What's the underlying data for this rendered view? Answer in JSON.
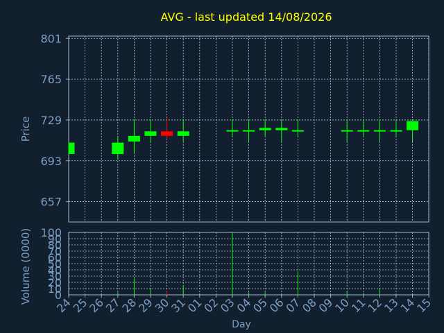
{
  "chart_data": {
    "type": "candlestick",
    "title": "AVG - last updated 14/08/2026",
    "xlabel": "Day",
    "x_ticks": [
      "24",
      "25",
      "26",
      "27",
      "28",
      "29",
      "30",
      "31",
      "01",
      "02",
      "03",
      "04",
      "05",
      "06",
      "07",
      "08",
      "09",
      "10",
      "11",
      "12",
      "13",
      "14",
      "15"
    ],
    "price_panel": {
      "ylabel": "Price",
      "yticks": [
        657,
        693,
        729,
        765,
        801
      ],
      "ylim": [
        639,
        803
      ],
      "grid": true,
      "candles": [
        {
          "day": "24",
          "open": 699,
          "close": 709,
          "high": 709,
          "low": 699,
          "direction": "up"
        },
        {
          "day": "27",
          "open": 699,
          "close": 709,
          "high": 715,
          "low": 694,
          "direction": "up"
        },
        {
          "day": "28",
          "open": 710,
          "close": 715,
          "high": 729,
          "low": 700,
          "direction": "up"
        },
        {
          "day": "29",
          "open": 715,
          "close": 719,
          "high": 729,
          "low": 710,
          "direction": "up"
        },
        {
          "day": "30",
          "open": 719,
          "close": 715,
          "high": 731,
          "low": 712,
          "direction": "down"
        },
        {
          "day": "31",
          "open": 715,
          "close": 719,
          "high": 729,
          "low": 710,
          "direction": "up"
        },
        {
          "day": "03",
          "open": 719,
          "close": 720,
          "high": 729,
          "low": 715,
          "direction": "up"
        },
        {
          "day": "04",
          "open": 719,
          "close": 720,
          "high": 729,
          "low": 710,
          "direction": "up"
        },
        {
          "day": "05",
          "open": 720,
          "close": 722,
          "high": 729,
          "low": 715,
          "direction": "up"
        },
        {
          "day": "06",
          "open": 720,
          "close": 722,
          "high": 729,
          "low": 710,
          "direction": "up"
        },
        {
          "day": "07",
          "open": 719,
          "close": 720,
          "high": 729,
          "low": 715,
          "direction": "up"
        },
        {
          "day": "10",
          "open": 719,
          "close": 720,
          "high": 729,
          "low": 710,
          "direction": "up"
        },
        {
          "day": "11",
          "open": 719,
          "close": 720,
          "high": 729,
          "low": 715,
          "direction": "up"
        },
        {
          "day": "12",
          "open": 719,
          "close": 720,
          "high": 729,
          "low": 710,
          "direction": "up"
        },
        {
          "day": "13",
          "open": 719,
          "close": 720,
          "high": 729,
          "low": 715,
          "direction": "up"
        },
        {
          "day": "14",
          "open": 720,
          "close": 728,
          "high": 728,
          "low": 710,
          "direction": "up"
        }
      ]
    },
    "volume_panel": {
      "ylabel": "Volume (0000)",
      "yticks": [
        0,
        10,
        20,
        30,
        40,
        50,
        60,
        70,
        80,
        90,
        100
      ],
      "ylim": [
        0,
        100
      ],
      "bars": [
        {
          "day": "27",
          "value": 4
        },
        {
          "day": "28",
          "value": 26
        },
        {
          "day": "29",
          "value": 9
        },
        {
          "day": "30",
          "value": 7
        },
        {
          "day": "31",
          "value": 15
        },
        {
          "day": "03",
          "value": 100
        },
        {
          "day": "04",
          "value": 4
        },
        {
          "day": "05",
          "value": 4
        },
        {
          "day": "07",
          "value": 38
        },
        {
          "day": "10",
          "value": 5
        },
        {
          "day": "11",
          "value": 3
        },
        {
          "day": "12",
          "value": 9
        }
      ]
    },
    "colors": {
      "background": "#111f2f",
      "text": "#7e9fc4",
      "title": "#ffff00",
      "grid": "#b4c8dc",
      "axis": "#9bb0c8",
      "up": "#00ff00",
      "down": "#ff0000"
    }
  }
}
